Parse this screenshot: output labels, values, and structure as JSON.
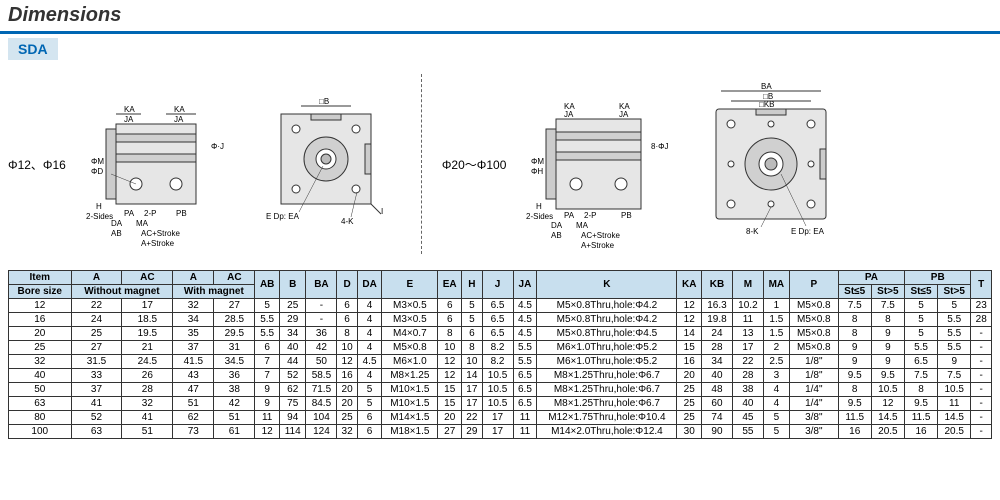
{
  "title": "Dimensions",
  "model": "SDA",
  "diagram_labels": {
    "small": "Φ12、Φ16",
    "large": "Φ20～Φ100",
    "ka": "KA",
    "ja": "JA",
    "b": "□B",
    "j_phi": "Φ·J",
    "m_phi": "ΦM",
    "d_phi": "ΦD",
    "h": "H",
    "sides2": "2-Sides",
    "pa": "PA",
    "p2": "2-P",
    "pb": "PB",
    "da": "DA",
    "ma": "MA",
    "ab": "AB",
    "ac_stroke": "AC+Stroke",
    "a_stroke": "A+Stroke",
    "e_dp": "E Dp: EA",
    "k4": "4-K",
    "i": "I",
    "ba": "BA",
    "kb": "□KB",
    "k8": "8-K",
    "h_phi": "ΦH",
    "b_phi": "8·ΦJ"
  },
  "headers": {
    "item": "Item",
    "bore": "Bore size",
    "a": "A",
    "ac": "AC",
    "ab": "AB",
    "b": "B",
    "ba": "BA",
    "d": "D",
    "da": "DA",
    "e": "E",
    "ea": "EA",
    "h": "H",
    "j": "J",
    "ja": "JA",
    "k": "K",
    "ka": "KA",
    "kb": "KB",
    "m": "M",
    "ma": "MA",
    "p": "P",
    "pa": "PA",
    "pb": "PB",
    "t": "T",
    "wo_mag": "Without magnet",
    "w_mag": "With magnet",
    "st_le5": "St≤5",
    "st_gt5": "St>5"
  },
  "rows": [
    {
      "bore": "12",
      "a1": "22",
      "ac1": "17",
      "a2": "32",
      "ac2": "27",
      "ab": "5",
      "b": "25",
      "ba": "-",
      "d": "6",
      "da": "4",
      "e": "M3×0.5",
      "ea": "6",
      "h": "5",
      "j": "6.5",
      "ja": "4.5",
      "k": "M5×0.8Thru,hole:Φ4.2",
      "ka": "12",
      "kb": "16.3",
      "m": "10.2",
      "ma": "1",
      "p": "M5×0.8",
      "pa1": "7.5",
      "pa2": "7.5",
      "pb1": "5",
      "pb2": "5",
      "t": "23"
    },
    {
      "bore": "16",
      "a1": "24",
      "ac1": "18.5",
      "a2": "34",
      "ac2": "28.5",
      "ab": "5.5",
      "b": "29",
      "ba": "-",
      "d": "6",
      "da": "4",
      "e": "M3×0.5",
      "ea": "6",
      "h": "5",
      "j": "6.5",
      "ja": "4.5",
      "k": "M5×0.8Thru,hole:Φ4.2",
      "ka": "12",
      "kb": "19.8",
      "m": "11",
      "ma": "1.5",
      "p": "M5×0.8",
      "pa1": "8",
      "pa2": "8",
      "pb1": "5",
      "pb2": "5.5",
      "t": "28"
    },
    {
      "bore": "20",
      "a1": "25",
      "ac1": "19.5",
      "a2": "35",
      "ac2": "29.5",
      "ab": "5.5",
      "b": "34",
      "ba": "36",
      "d": "8",
      "da": "4",
      "e": "M4×0.7",
      "ea": "8",
      "h": "6",
      "j": "6.5",
      "ja": "4.5",
      "k": "M5×0.8Thru,hole:Φ4.5",
      "ka": "14",
      "kb": "24",
      "m": "13",
      "ma": "1.5",
      "p": "M5×0.8",
      "pa1": "8",
      "pa2": "9",
      "pb1": "5",
      "pb2": "5.5",
      "t": "-"
    },
    {
      "bore": "25",
      "a1": "27",
      "ac1": "21",
      "a2": "37",
      "ac2": "31",
      "ab": "6",
      "b": "40",
      "ba": "42",
      "d": "10",
      "da": "4",
      "e": "M5×0.8",
      "ea": "10",
      "h": "8",
      "j": "8.2",
      "ja": "5.5",
      "k": "M6×1.0Thru,hole:Φ5.2",
      "ka": "15",
      "kb": "28",
      "m": "17",
      "ma": "2",
      "p": "M5×0.8",
      "pa1": "9",
      "pa2": "9",
      "pb1": "5.5",
      "pb2": "5.5",
      "t": "-"
    },
    {
      "bore": "32",
      "a1": "31.5",
      "ac1": "24.5",
      "a2": "41.5",
      "ac2": "34.5",
      "ab": "7",
      "b": "44",
      "ba": "50",
      "d": "12",
      "da": "4.5",
      "e": "M6×1.0",
      "ea": "12",
      "h": "10",
      "j": "8.2",
      "ja": "5.5",
      "k": "M6×1.0Thru,hole:Φ5.2",
      "ka": "16",
      "kb": "34",
      "m": "22",
      "ma": "2.5",
      "p": "1/8\"",
      "pa1": "9",
      "pa2": "9",
      "pb1": "6.5",
      "pb2": "9",
      "t": "-"
    },
    {
      "bore": "40",
      "a1": "33",
      "ac1": "26",
      "a2": "43",
      "ac2": "36",
      "ab": "7",
      "b": "52",
      "ba": "58.5",
      "d": "16",
      "da": "4",
      "e": "M8×1.25",
      "ea": "12",
      "h": "14",
      "j": "10.5",
      "ja": "6.5",
      "k": "M8×1.25Thru,hole:Φ6.7",
      "ka": "20",
      "kb": "40",
      "m": "28",
      "ma": "3",
      "p": "1/8\"",
      "pa1": "9.5",
      "pa2": "9.5",
      "pb1": "7.5",
      "pb2": "7.5",
      "t": "-"
    },
    {
      "bore": "50",
      "a1": "37",
      "ac1": "28",
      "a2": "47",
      "ac2": "38",
      "ab": "9",
      "b": "62",
      "ba": "71.5",
      "d": "20",
      "da": "5",
      "e": "M10×1.5",
      "ea": "15",
      "h": "17",
      "j": "10.5",
      "ja": "6.5",
      "k": "M8×1.25Thru,hole:Φ6.7",
      "ka": "25",
      "kb": "48",
      "m": "38",
      "ma": "4",
      "p": "1/4\"",
      "pa1": "8",
      "pa2": "10.5",
      "pb1": "8",
      "pb2": "10.5",
      "t": "-"
    },
    {
      "bore": "63",
      "a1": "41",
      "ac1": "32",
      "a2": "51",
      "ac2": "42",
      "ab": "9",
      "b": "75",
      "ba": "84.5",
      "d": "20",
      "da": "5",
      "e": "M10×1.5",
      "ea": "15",
      "h": "17",
      "j": "10.5",
      "ja": "6.5",
      "k": "M8×1.25Thru,hole:Φ6.7",
      "ka": "25",
      "kb": "60",
      "m": "40",
      "ma": "4",
      "p": "1/4\"",
      "pa1": "9.5",
      "pa2": "12",
      "pb1": "9.5",
      "pb2": "11",
      "t": "-"
    },
    {
      "bore": "80",
      "a1": "52",
      "ac1": "41",
      "a2": "62",
      "ac2": "51",
      "ab": "11",
      "b": "94",
      "ba": "104",
      "d": "25",
      "da": "6",
      "e": "M14×1.5",
      "ea": "20",
      "h": "22",
      "j": "17",
      "ja": "11",
      "k": "M12×1.75Thru,hole:Φ10.4",
      "ka": "25",
      "kb": "74",
      "m": "45",
      "ma": "5",
      "p": "3/8\"",
      "pa1": "11.5",
      "pa2": "14.5",
      "pb1": "11.5",
      "pb2": "14.5",
      "t": "-"
    },
    {
      "bore": "100",
      "a1": "63",
      "ac1": "51",
      "a2": "73",
      "ac2": "61",
      "ab": "12",
      "b": "114",
      "ba": "124",
      "d": "32",
      "da": "6",
      "e": "M18×1.5",
      "ea": "27",
      "h": "29",
      "j": "17",
      "ja": "11",
      "k": "M14×2.0Thru,hole:Φ12.4",
      "ka": "30",
      "kb": "90",
      "m": "55",
      "ma": "5",
      "p": "3/8\"",
      "pa1": "16",
      "pa2": "20.5",
      "pb1": "16",
      "pb2": "20.5",
      "t": "-"
    }
  ]
}
